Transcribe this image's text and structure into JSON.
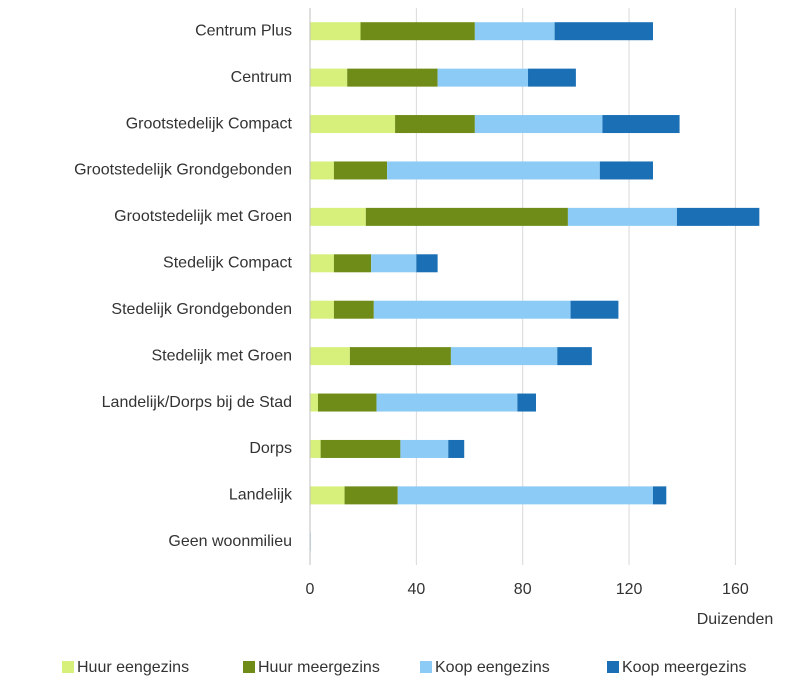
{
  "chart_data": {
    "type": "stacked_bar_horizontal",
    "categories": [
      "Centrum Plus",
      "Centrum",
      "Grootstedelijk Compact",
      "Grootstedelijk Grondgebonden",
      "Grootstedelijk met Groen",
      "Stedelijk Compact",
      "Stedelijk Grondgebonden",
      "Stedelijk met Groen",
      "Landelijk/Dorps bij de Stad",
      "Dorps",
      "Landelijk",
      "Geen woonmilieu"
    ],
    "series": [
      {
        "name": "Huur eengezins",
        "color": "#d7f07c",
        "values": [
          19,
          14,
          32,
          9,
          21,
          9,
          9,
          15,
          3,
          4,
          13,
          0.2
        ]
      },
      {
        "name": "Huur meergezins",
        "color": "#6e8c17",
        "values": [
          43,
          34,
          30,
          20,
          76,
          14,
          15,
          38,
          22,
          30,
          20,
          0
        ]
      },
      {
        "name": "Koop eengezins",
        "color": "#8ccbf5",
        "values": [
          30,
          34,
          48,
          80,
          41,
          17,
          74,
          40,
          53,
          18,
          96,
          0.1
        ]
      },
      {
        "name": "Koop meergezins",
        "color": "#1a6fb5",
        "values": [
          37,
          18,
          29,
          20,
          31,
          8,
          18,
          13,
          7,
          6,
          5,
          0
        ]
      }
    ],
    "xlim": [
      0,
      170
    ],
    "xticks": [
      0,
      40,
      80,
      120,
      160
    ],
    "x_axis_label": "Duizenden",
    "grid": true,
    "legend": "bottom"
  }
}
